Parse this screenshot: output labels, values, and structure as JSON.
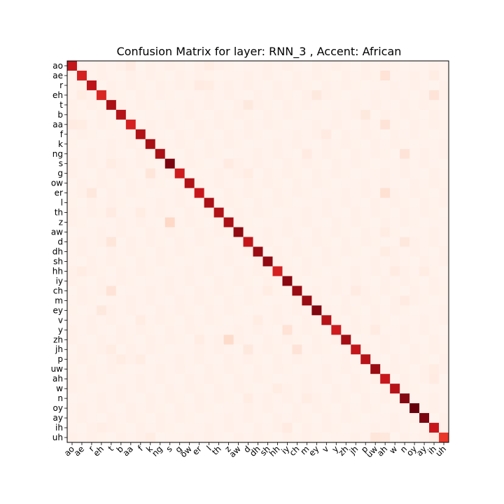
{
  "chart_data": {
    "type": "heatmap",
    "title": "Confusion Matrix for layer: RNN_3 , Accent: African",
    "xlabel": "",
    "ylabel": "",
    "colormap": "Reds",
    "grid": false,
    "labels": [
      "ao",
      "ae",
      "r",
      "eh",
      "t",
      "b",
      "aa",
      "f",
      "k",
      "ng",
      "s",
      "g",
      "ow",
      "er",
      "l",
      "th",
      "z",
      "aw",
      "d",
      "dh",
      "sh",
      "hh",
      "iy",
      "ch",
      "m",
      "ey",
      "v",
      "y",
      "zh",
      "jh",
      "p",
      "uw",
      "ah",
      "w",
      "n",
      "oy",
      "ay",
      "ih",
      "uh"
    ],
    "diagonal": [
      0.78,
      0.72,
      0.8,
      0.7,
      0.86,
      0.83,
      0.72,
      0.84,
      0.87,
      0.86,
      0.96,
      0.74,
      0.84,
      0.76,
      0.86,
      0.84,
      0.86,
      0.92,
      0.78,
      0.9,
      0.92,
      0.72,
      0.93,
      0.9,
      0.9,
      0.95,
      0.82,
      0.74,
      0.88,
      0.78,
      0.82,
      0.9,
      0.76,
      0.82,
      0.94,
      1.0,
      0.96,
      0.76,
      0.64
    ],
    "off_diagonal": [
      {
        "row": "ao",
        "col": "aa",
        "value": 0.06
      },
      {
        "row": "ao",
        "col": "l",
        "value": 0.05
      },
      {
        "row": "ae",
        "col": "ah",
        "value": 0.11
      },
      {
        "row": "ae",
        "col": "ih",
        "value": 0.05
      },
      {
        "row": "r",
        "col": "er",
        "value": 0.06
      },
      {
        "row": "r",
        "col": "l",
        "value": 0.05
      },
      {
        "row": "eh",
        "col": "ih",
        "value": 0.1
      },
      {
        "row": "eh",
        "col": "ey",
        "value": 0.07
      },
      {
        "row": "eh",
        "col": "ae",
        "value": 0.05
      },
      {
        "row": "t",
        "col": "d",
        "value": 0.07
      },
      {
        "row": "b",
        "col": "p",
        "value": 0.07
      },
      {
        "row": "aa",
        "col": "ah",
        "value": 0.1
      },
      {
        "row": "aa",
        "col": "ao",
        "value": 0.06
      },
      {
        "row": "aa",
        "col": "ae",
        "value": 0.05
      },
      {
        "row": "f",
        "col": "v",
        "value": 0.06
      },
      {
        "row": "ng",
        "col": "n",
        "value": 0.1
      },
      {
        "row": "ng",
        "col": "m",
        "value": 0.06
      },
      {
        "row": "s",
        "col": "z",
        "value": 0.06
      },
      {
        "row": "s",
        "col": "t",
        "value": 0.05
      },
      {
        "row": "g",
        "col": "k",
        "value": 0.09
      },
      {
        "row": "g",
        "col": "d",
        "value": 0.05
      },
      {
        "row": "er",
        "col": "ah",
        "value": 0.12
      },
      {
        "row": "er",
        "col": "r",
        "value": 0.08
      },
      {
        "row": "th",
        "col": "t",
        "value": 0.06
      },
      {
        "row": "th",
        "col": "f",
        "value": 0.05
      },
      {
        "row": "z",
        "col": "s",
        "value": 0.15
      },
      {
        "row": "aw",
        "col": "ah",
        "value": 0.05
      },
      {
        "row": "d",
        "col": "t",
        "value": 0.09
      },
      {
        "row": "d",
        "col": "n",
        "value": 0.08
      },
      {
        "row": "dh",
        "col": "ah",
        "value": 0.05
      },
      {
        "row": "hh",
        "col": "w",
        "value": 0.06
      },
      {
        "row": "hh",
        "col": "ae",
        "value": 0.05
      },
      {
        "row": "hh",
        "col": "ay",
        "value": 0.05
      },
      {
        "row": "ch",
        "col": "t",
        "value": 0.1
      },
      {
        "row": "ch",
        "col": "sh",
        "value": 0.05
      },
      {
        "row": "ch",
        "col": "jh",
        "value": 0.06
      },
      {
        "row": "m",
        "col": "n",
        "value": 0.06
      },
      {
        "row": "ey",
        "col": "eh",
        "value": 0.07
      },
      {
        "row": "v",
        "col": "f",
        "value": 0.05
      },
      {
        "row": "v",
        "col": "dh",
        "value": 0.05
      },
      {
        "row": "y",
        "col": "iy",
        "value": 0.11
      },
      {
        "row": "y",
        "col": "uw",
        "value": 0.06
      },
      {
        "row": "zh",
        "col": "z",
        "value": 0.14
      },
      {
        "row": "zh",
        "col": "er",
        "value": 0.05
      },
      {
        "row": "jh",
        "col": "ch",
        "value": 0.1
      },
      {
        "row": "jh",
        "col": "d",
        "value": 0.07
      },
      {
        "row": "jh",
        "col": "t",
        "value": 0.05
      },
      {
        "row": "p",
        "col": "b",
        "value": 0.05
      },
      {
        "row": "p",
        "col": "f",
        "value": 0.05
      },
      {
        "row": "uw",
        "col": "ih",
        "value": 0.05
      },
      {
        "row": "ah",
        "col": "ih",
        "value": 0.06
      },
      {
        "row": "w",
        "col": "hh",
        "value": 0.05
      },
      {
        "row": "n",
        "col": "m",
        "value": 0.05
      },
      {
        "row": "n",
        "col": "d",
        "value": 0.05
      },
      {
        "row": "ih",
        "col": "iy",
        "value": 0.06
      },
      {
        "row": "ih",
        "col": "eh",
        "value": 0.04
      },
      {
        "row": "uh",
        "col": "uw",
        "value": 0.09
      },
      {
        "row": "uh",
        "col": "ah",
        "value": 0.08
      },
      {
        "row": "uh",
        "col": "ih",
        "value": 0.06
      },
      {
        "row": "uh",
        "col": "k",
        "value": 0.05
      }
    ]
  }
}
